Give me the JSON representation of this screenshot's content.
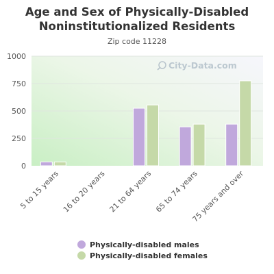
{
  "chart_data": {
    "type": "bar",
    "title": "Age and Sex of Physically-Disabled Noninstitutionalized Residents",
    "title_lines": [
      "Age and Sex of Physically-Disabled",
      "Noninstitutionalized Residents"
    ],
    "subtitle": "Zip code 11228",
    "watermark": "City-Data.com",
    "categories": [
      "5 to 15 years",
      "16 to 20 years",
      "21 to 64 years",
      "65 to 74 years",
      "75 years and over"
    ],
    "series": [
      {
        "name": "Physically-disabled males",
        "color": "#c0a8dc",
        "values": [
          35,
          0,
          525,
          355,
          380
        ]
      },
      {
        "name": "Physically-disabled females",
        "color": "#c5d9a8",
        "values": [
          35,
          0,
          555,
          380,
          775
        ]
      }
    ],
    "yticks": [
      0,
      250,
      500,
      750,
      1000
    ],
    "ytick_labels": [
      "0",
      "250",
      "500",
      "750",
      "1000"
    ],
    "ylim": [
      0,
      1000
    ],
    "grid": true,
    "legend_position": "bottom"
  }
}
